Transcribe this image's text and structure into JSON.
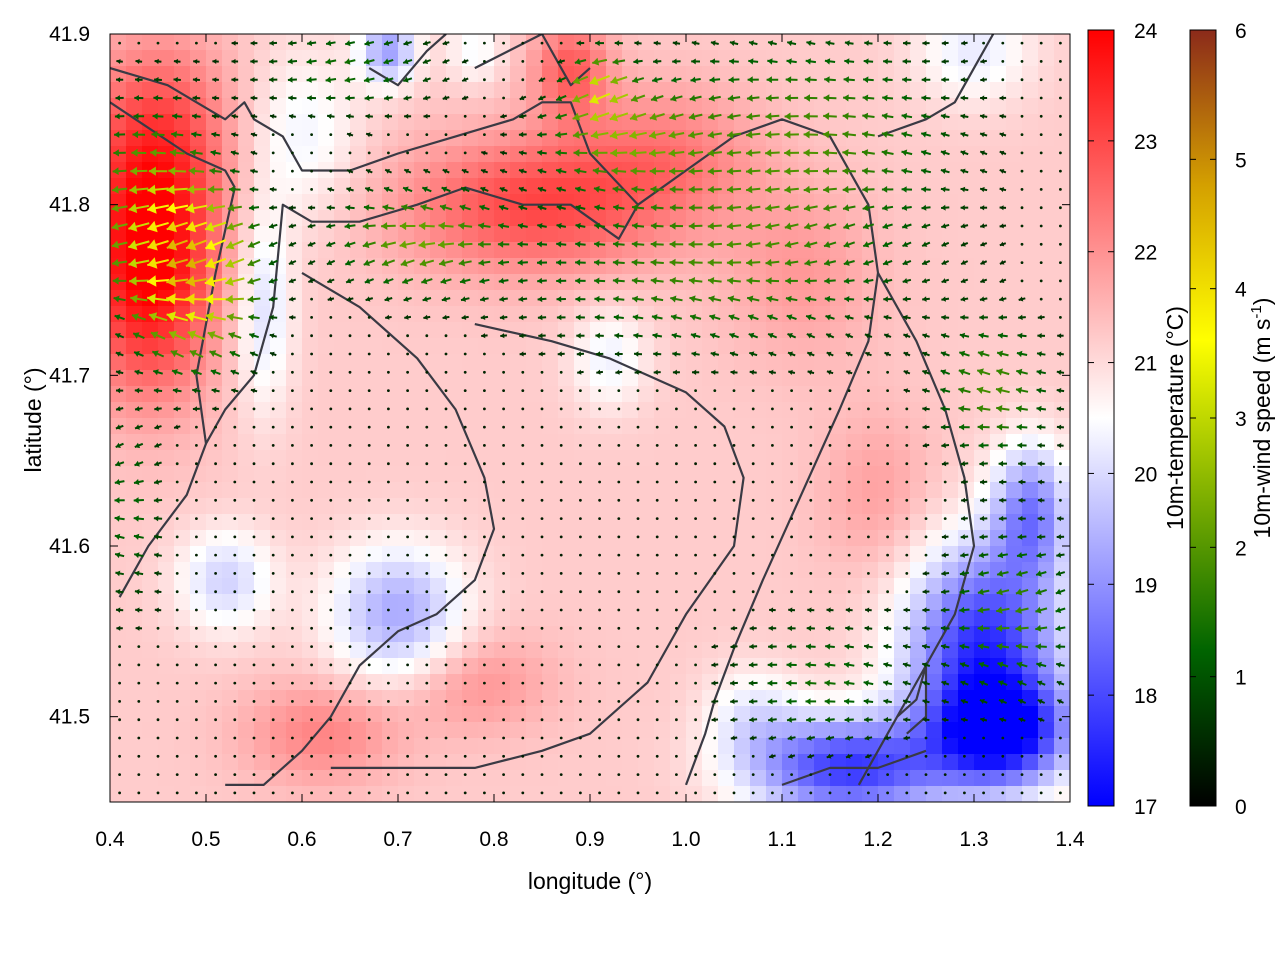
{
  "chart_data": {
    "type": "heatmap",
    "title": "",
    "xlabel": "longitude (°)",
    "ylabel": "latitude (°)",
    "xlim": [
      0.4,
      1.4
    ],
    "ylim": [
      41.45,
      41.9
    ],
    "x_ticks": [
      {
        "value": 0.4,
        "label": "0.4"
      },
      {
        "value": 0.5,
        "label": "0.5"
      },
      {
        "value": 0.6,
        "label": "0.6"
      },
      {
        "value": 0.7,
        "label": "0.7"
      },
      {
        "value": 0.8,
        "label": "0.8"
      },
      {
        "value": 0.9,
        "label": "0.9"
      },
      {
        "value": 1.0,
        "label": "1.0"
      },
      {
        "value": 1.1,
        "label": "1.1"
      },
      {
        "value": 1.2,
        "label": "1.2"
      },
      {
        "value": 1.3,
        "label": "1.3"
      },
      {
        "value": 1.4,
        "label": "1.4"
      }
    ],
    "y_ticks": [
      {
        "value": 41.5,
        "label": "41.5"
      },
      {
        "value": 41.6,
        "label": "41.6"
      },
      {
        "value": 41.7,
        "label": "41.7"
      },
      {
        "value": 41.8,
        "label": "41.8"
      },
      {
        "value": 41.9,
        "label": "41.9"
      }
    ],
    "temperature_colorbar": {
      "label": "10m-temperature (°C)",
      "range": [
        17,
        24
      ],
      "colors": [
        "#0000ff",
        "#ffffff",
        "#ff0000"
      ],
      "ticks": [
        {
          "value": 17,
          "label": "17"
        },
        {
          "value": 18,
          "label": "18"
        },
        {
          "value": 19,
          "label": "19"
        },
        {
          "value": 20,
          "label": "20"
        },
        {
          "value": 21,
          "label": "21"
        },
        {
          "value": 22,
          "label": "22"
        },
        {
          "value": 23,
          "label": "23"
        },
        {
          "value": 24,
          "label": "24"
        }
      ]
    },
    "wind_colorbar": {
      "label_main": "10m-wind speed (m s",
      "label_sup": "-1",
      "label_end": ")",
      "range": [
        0,
        6
      ],
      "colors": [
        "#000000",
        "#006400",
        "#7fb000",
        "#ffff00",
        "#d4a000",
        "#8b2a1a"
      ],
      "ticks": [
        {
          "value": 0,
          "label": "0"
        },
        {
          "value": 1,
          "label": "1"
        },
        {
          "value": 2,
          "label": "2"
        },
        {
          "value": 3,
          "label": "3"
        },
        {
          "value": 4,
          "label": "4"
        },
        {
          "value": 5,
          "label": "5"
        },
        {
          "value": 6,
          "label": "6"
        }
      ]
    },
    "temperature_anomalies": [
      {
        "lon": 0.44,
        "lat": 41.76,
        "r_lon": 0.07,
        "r_lat": 0.07,
        "dT": 2.8
      },
      {
        "lon": 0.45,
        "lat": 41.84,
        "r_lon": 0.08,
        "r_lat": 0.06,
        "dT": 1.6
      },
      {
        "lon": 0.84,
        "lat": 41.8,
        "r_lon": 0.14,
        "r_lat": 0.04,
        "dT": 1.8
      },
      {
        "lon": 0.98,
        "lat": 41.83,
        "r_lon": 0.1,
        "r_lat": 0.04,
        "dT": 1.0
      },
      {
        "lon": 0.88,
        "lat": 41.88,
        "r_lon": 0.04,
        "r_lat": 0.03,
        "dT": 1.5
      },
      {
        "lon": 0.6,
        "lat": 41.84,
        "r_lon": 0.06,
        "r_lat": 0.05,
        "dT": -0.9
      },
      {
        "lon": 0.56,
        "lat": 41.74,
        "r_lon": 0.03,
        "r_lat": 0.06,
        "dT": -1.2
      },
      {
        "lon": 0.69,
        "lat": 41.89,
        "r_lon": 0.03,
        "r_lat": 0.02,
        "dT": -2.0
      },
      {
        "lon": 0.52,
        "lat": 41.58,
        "r_lon": 0.05,
        "r_lat": 0.03,
        "dT": -1.3
      },
      {
        "lon": 0.7,
        "lat": 41.56,
        "r_lon": 0.07,
        "r_lat": 0.04,
        "dT": -1.9
      },
      {
        "lon": 0.92,
        "lat": 41.71,
        "r_lon": 0.04,
        "r_lat": 0.03,
        "dT": -0.9
      },
      {
        "lon": 1.07,
        "lat": 41.5,
        "r_lon": 0.05,
        "r_lat": 0.03,
        "dT": -0.9
      },
      {
        "lon": 1.31,
        "lat": 41.54,
        "r_lon": 0.08,
        "r_lat": 0.06,
        "dT": -3.6
      },
      {
        "lon": 1.36,
        "lat": 41.62,
        "r_lon": 0.04,
        "r_lat": 0.04,
        "dT": -2.3
      },
      {
        "lon": 1.17,
        "lat": 41.47,
        "r_lon": 0.1,
        "r_lat": 0.03,
        "dT": -3.4
      },
      {
        "lon": 1.33,
        "lat": 41.49,
        "r_lon": 0.07,
        "r_lat": 0.03,
        "dT": -3.6
      },
      {
        "lon": 1.3,
        "lat": 41.89,
        "r_lon": 0.06,
        "r_lat": 0.03,
        "dT": -1.0
      },
      {
        "lon": 0.78,
        "lat": 41.89,
        "r_lon": 0.03,
        "r_lat": 0.02,
        "dT": -0.8
      },
      {
        "lon": 0.62,
        "lat": 41.49,
        "r_lon": 0.08,
        "r_lat": 0.03,
        "dT": 1.0
      },
      {
        "lon": 0.78,
        "lat": 41.52,
        "r_lon": 0.08,
        "r_lat": 0.03,
        "dT": 0.8
      },
      {
        "lon": 1.12,
        "lat": 41.76,
        "r_lon": 0.08,
        "r_lat": 0.05,
        "dT": 0.7
      },
      {
        "lon": 1.2,
        "lat": 41.63,
        "r_lon": 0.06,
        "r_lat": 0.05,
        "dT": 0.6
      }
    ],
    "wind_zones": [
      {
        "lon": 0.49,
        "lat": 41.76,
        "r_lon": 0.06,
        "r_lat": 0.05,
        "speed": 3.6
      },
      {
        "lon": 0.44,
        "lat": 41.8,
        "r_lon": 0.06,
        "r_lat": 0.06,
        "speed": 1.9
      },
      {
        "lon": 0.72,
        "lat": 41.78,
        "r_lon": 0.09,
        "r_lat": 0.03,
        "speed": 1.8
      },
      {
        "lon": 0.93,
        "lat": 41.84,
        "r_lon": 0.08,
        "r_lat": 0.03,
        "speed": 1.6
      },
      {
        "lon": 0.91,
        "lat": 41.87,
        "r_lon": 0.03,
        "r_lat": 0.02,
        "speed": 2.1
      },
      {
        "lon": 1.12,
        "lat": 41.84,
        "r_lon": 0.16,
        "r_lat": 0.06,
        "speed": 1.5
      },
      {
        "lon": 1.02,
        "lat": 41.76,
        "r_lon": 0.2,
        "r_lat": 0.05,
        "speed": 1.3
      },
      {
        "lon": 1.32,
        "lat": 41.69,
        "r_lon": 0.06,
        "r_lat": 0.04,
        "speed": 1.5
      },
      {
        "lon": 1.34,
        "lat": 41.56,
        "r_lon": 0.07,
        "r_lat": 0.05,
        "speed": 1.4
      },
      {
        "lon": 1.14,
        "lat": 41.52,
        "r_lon": 0.1,
        "r_lat": 0.04,
        "speed": 1.0
      },
      {
        "lon": 0.42,
        "lat": 41.62,
        "r_lon": 0.04,
        "r_lat": 0.06,
        "speed": 0.9
      },
      {
        "lon": 0.65,
        "lat": 41.88,
        "r_lon": 0.1,
        "r_lat": 0.03,
        "speed": 1.0
      }
    ],
    "coastline_paths": [
      [
        [
          0.4,
          41.88
        ],
        [
          0.46,
          41.87
        ],
        [
          0.52,
          41.85
        ],
        [
          0.54,
          41.86
        ],
        [
          0.55,
          41.85
        ],
        [
          0.58,
          41.84
        ],
        [
          0.6,
          41.82
        ],
        [
          0.65,
          41.82
        ],
        [
          0.7,
          41.83
        ],
        [
          0.76,
          41.84
        ],
        [
          0.82,
          41.85
        ],
        [
          0.85,
          41.86
        ],
        [
          0.88,
          41.86
        ],
        [
          0.9,
          41.83
        ],
        [
          0.95,
          41.8
        ]
      ],
      [
        [
          0.4,
          41.86
        ],
        [
          0.48,
          41.83
        ],
        [
          0.52,
          41.82
        ],
        [
          0.53,
          41.81
        ]
      ],
      [
        [
          0.67,
          41.88
        ],
        [
          0.7,
          41.87
        ],
        [
          0.73,
          41.89
        ],
        [
          0.75,
          41.9
        ]
      ],
      [
        [
          0.78,
          41.88
        ],
        [
          0.85,
          41.9
        ],
        [
          0.88,
          41.87
        ],
        [
          0.9,
          41.88
        ]
      ],
      [
        [
          0.53,
          41.81
        ],
        [
          0.51,
          41.76
        ],
        [
          0.49,
          41.7
        ],
        [
          0.5,
          41.66
        ],
        [
          0.52,
          41.68
        ],
        [
          0.55,
          41.7
        ],
        [
          0.57,
          41.74
        ],
        [
          0.58,
          41.8
        ],
        [
          0.61,
          41.79
        ],
        [
          0.66,
          41.79
        ],
        [
          0.72,
          41.8
        ],
        [
          0.77,
          41.81
        ],
        [
          0.83,
          41.8
        ],
        [
          0.88,
          41.8
        ],
        [
          0.93,
          41.78
        ],
        [
          0.95,
          41.8
        ]
      ],
      [
        [
          0.95,
          41.8
        ],
        [
          1.0,
          41.82
        ],
        [
          1.05,
          41.84
        ],
        [
          1.1,
          41.85
        ],
        [
          1.15,
          41.84
        ],
        [
          1.19,
          41.8
        ],
        [
          1.2,
          41.76
        ],
        [
          1.19,
          41.72
        ],
        [
          1.16,
          41.68
        ],
        [
          1.12,
          41.63
        ],
        [
          1.08,
          41.58
        ],
        [
          1.05,
          41.54
        ],
        [
          1.03,
          41.51
        ],
        [
          1.02,
          41.49
        ],
        [
          1.0,
          41.46
        ]
      ],
      [
        [
          0.5,
          41.66
        ],
        [
          0.48,
          41.63
        ],
        [
          0.44,
          41.6
        ],
        [
          0.41,
          41.57
        ]
      ],
      [
        [
          0.78,
          41.73
        ],
        [
          0.86,
          41.72
        ],
        [
          0.92,
          41.71
        ],
        [
          0.96,
          41.7
        ],
        [
          1.0,
          41.69
        ],
        [
          1.04,
          41.67
        ],
        [
          1.06,
          41.64
        ],
        [
          1.05,
          41.6
        ],
        [
          1.0,
          41.56
        ],
        [
          0.96,
          41.52
        ],
        [
          0.9,
          41.49
        ],
        [
          0.85,
          41.48
        ],
        [
          0.78,
          41.47
        ],
        [
          0.72,
          41.47
        ],
        [
          0.67,
          41.47
        ],
        [
          0.63,
          41.47
        ]
      ],
      [
        [
          0.6,
          41.76
        ],
        [
          0.66,
          41.74
        ],
        [
          0.72,
          41.71
        ],
        [
          0.76,
          41.68
        ],
        [
          0.79,
          41.64
        ],
        [
          0.8,
          41.61
        ],
        [
          0.78,
          41.58
        ],
        [
          0.74,
          41.56
        ],
        [
          0.7,
          41.55
        ],
        [
          0.66,
          41.53
        ],
        [
          0.63,
          41.5
        ],
        [
          0.6,
          41.48
        ],
        [
          0.56,
          41.46
        ],
        [
          0.52,
          41.46
        ]
      ],
      [
        [
          1.2,
          41.84
        ],
        [
          1.25,
          41.85
        ],
        [
          1.28,
          41.86
        ],
        [
          1.3,
          41.88
        ],
        [
          1.32,
          41.9
        ]
      ],
      [
        [
          1.2,
          41.76
        ],
        [
          1.24,
          41.72
        ],
        [
          1.27,
          41.68
        ],
        [
          1.29,
          41.64
        ],
        [
          1.3,
          41.6
        ],
        [
          1.28,
          41.56
        ],
        [
          1.24,
          41.52
        ],
        [
          1.21,
          41.49
        ],
        [
          1.18,
          41.46
        ]
      ],
      [
        [
          1.22,
          41.5
        ],
        [
          1.24,
          41.51
        ],
        [
          1.25,
          41.53
        ],
        [
          1.25,
          41.5
        ],
        [
          1.23,
          41.49
        ]
      ],
      [
        [
          1.1,
          41.46
        ],
        [
          1.15,
          41.47
        ],
        [
          1.2,
          41.47
        ],
        [
          1.25,
          41.48
        ]
      ]
    ]
  }
}
